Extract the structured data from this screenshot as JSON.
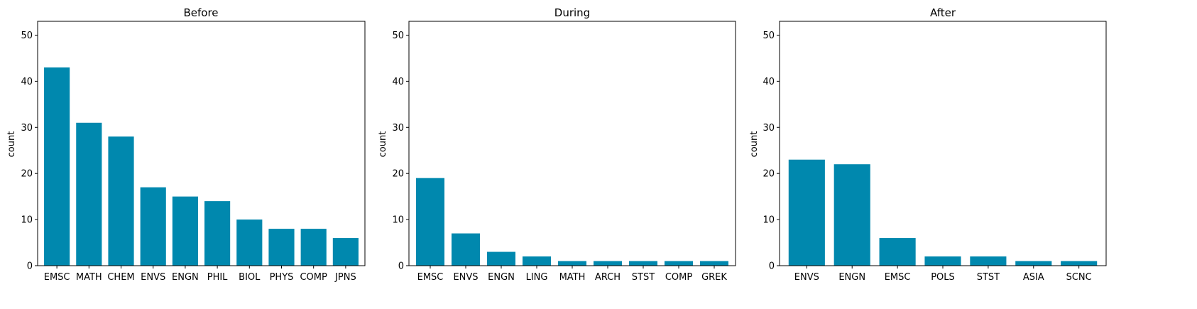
{
  "chart_data": [
    {
      "type": "bar",
      "title": "Before",
      "ylabel": "count",
      "xlabel": "",
      "ylim": [
        0,
        53
      ],
      "yticks": [
        0,
        10,
        20,
        30,
        40,
        50
      ],
      "categories": [
        "EMSC",
        "MATH",
        "CHEM",
        "ENVS",
        "ENGN",
        "PHIL",
        "BIOL",
        "PHYS",
        "COMP",
        "JPNS"
      ],
      "values": [
        43,
        31,
        28,
        17,
        15,
        14,
        10,
        8,
        8,
        6
      ],
      "color": "#0088AE"
    },
    {
      "type": "bar",
      "title": "During",
      "ylabel": "count",
      "xlabel": "",
      "ylim": [
        0,
        53
      ],
      "yticks": [
        0,
        10,
        20,
        30,
        40,
        50
      ],
      "categories": [
        "EMSC",
        "ENVS",
        "ENGN",
        "LING",
        "MATH",
        "ARCH",
        "STST",
        "COMP",
        "GREK"
      ],
      "values": [
        19,
        7,
        3,
        2,
        1,
        1,
        1,
        1,
        1
      ],
      "color": "#0088AE"
    },
    {
      "type": "bar",
      "title": "After",
      "ylabel": "count",
      "xlabel": "",
      "ylim": [
        0,
        53
      ],
      "yticks": [
        0,
        10,
        20,
        30,
        40,
        50
      ],
      "categories": [
        "ENVS",
        "ENGN",
        "EMSC",
        "POLS",
        "STST",
        "ASIA",
        "SCNC"
      ],
      "values": [
        23,
        22,
        6,
        2,
        2,
        1,
        1
      ],
      "color": "#0088AE"
    }
  ]
}
